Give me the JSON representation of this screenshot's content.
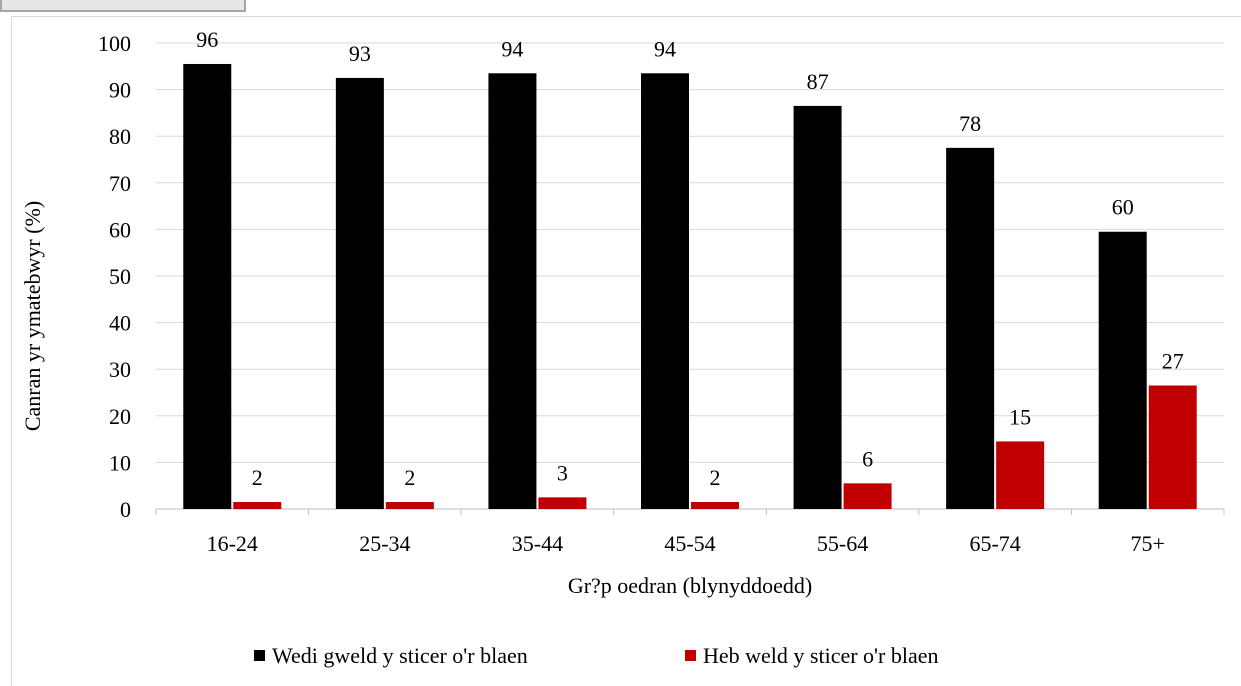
{
  "chart_data": {
    "type": "bar",
    "title": "",
    "xlabel": "Gr?p oedran (blynyddoedd)",
    "ylabel": "Canran yr ymatebwyr (%)",
    "ylim": [
      0,
      100
    ],
    "yticks": [
      0,
      10,
      20,
      30,
      40,
      50,
      60,
      70,
      80,
      90,
      100
    ],
    "grid": true,
    "legend_position": "bottom",
    "categories": [
      "16-24",
      "25-34",
      "35-44",
      "45-54",
      "55-64",
      "65-74",
      "75+"
    ],
    "series": [
      {
        "name": "Wedi gweld y sticer o'r blaen",
        "color": "#000000",
        "values": [
          95.5,
          92.5,
          93.5,
          93.5,
          86.5,
          77.5,
          59.5
        ],
        "labels": [
          "96",
          "93",
          "94",
          "94",
          "87",
          "78",
          "60"
        ]
      },
      {
        "name": "Heb weld y sticer o'r blaen",
        "color": "#c00000",
        "values": [
          1.5,
          1.5,
          2.5,
          1.5,
          5.5,
          14.5,
          26.5
        ],
        "labels": [
          "2",
          "2",
          "3",
          "2",
          "6",
          "15",
          "27"
        ]
      }
    ]
  }
}
